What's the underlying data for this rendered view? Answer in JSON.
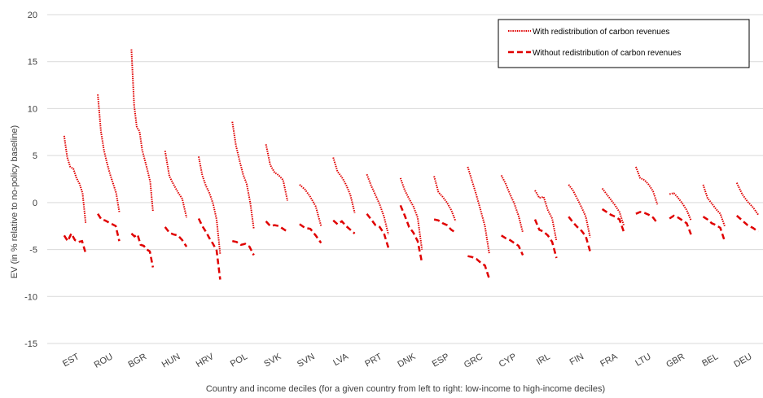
{
  "chart_data": {
    "type": "line",
    "xlabel": "Country and income deciles (for a given country from left to right: low-income to high-income deciles)",
    "ylabel": "EV (in % relative to no-policy baseline)",
    "ylim": [
      -15,
      20
    ],
    "yticks": [
      20,
      15,
      10,
      5,
      0,
      -5,
      -10,
      -15
    ],
    "grid": "horizontal",
    "legend_position": "top-right",
    "categories": [
      "EST",
      "ROU",
      "BGR",
      "HUN",
      "HRV",
      "POL",
      "SVK",
      "SVN",
      "LVA",
      "PRT",
      "DNK",
      "ESP",
      "GRC",
      "CYP",
      "IRL",
      "FIN",
      "FRA",
      "LTU",
      "GBR",
      "BEL",
      "DEU"
    ],
    "series": [
      {
        "name": "With redistribution of carbon revenues",
        "style": "dotted",
        "color": "#e00000",
        "values": [
          [
            7.1,
            4.8,
            3.8,
            3.6,
            2.6,
            2.0,
            1.0,
            -2.2
          ],
          [
            11.5,
            7.6,
            5.6,
            4.2,
            3.0,
            2.0,
            1.0,
            -1.0
          ],
          [
            16.3,
            10.4,
            8.0,
            7.6,
            5.6,
            4.5,
            3.4,
            2.2,
            -0.9
          ],
          [
            5.5,
            2.8,
            1.9,
            1.1,
            0.4,
            -1.6
          ],
          [
            4.9,
            2.9,
            1.8,
            1.0,
            -0.1,
            -1.8,
            -5.5
          ],
          [
            8.6,
            6.1,
            4.5,
            3.0,
            2.0,
            0.0,
            -2.8
          ],
          [
            6.2,
            4.0,
            3.2,
            2.9,
            2.4,
            0.2
          ],
          [
            1.9,
            1.4,
            0.6,
            -0.4,
            -2.5
          ],
          [
            4.8,
            3.3,
            2.7,
            1.9,
            0.8,
            -1.1
          ],
          [
            3.0,
            1.8,
            0.8,
            -0.2,
            -1.5,
            -3.4
          ],
          [
            2.6,
            1.3,
            0.4,
            -0.4,
            -1.6,
            -5.0
          ],
          [
            2.8,
            1.1,
            0.6,
            0.0,
            -0.8,
            -2.0
          ],
          [
            3.8,
            2.3,
            0.8,
            -0.8,
            -2.5,
            -5.4
          ],
          [
            2.9,
            2.0,
            0.9,
            -0.1,
            -1.4,
            -3.2
          ],
          [
            1.3,
            0.5,
            0.6,
            -0.8,
            -1.7,
            -4.1
          ],
          [
            1.9,
            1.3,
            0.4,
            -0.5,
            -1.5,
            -3.7
          ],
          [
            1.5,
            0.9,
            0.3,
            -0.3,
            -1.0,
            -2.4
          ],
          [
            3.8,
            2.6,
            2.4,
            1.9,
            1.2,
            -0.2
          ],
          [
            0.9,
            1.0,
            0.5,
            -0.1,
            -0.8,
            -1.9
          ],
          [
            1.9,
            0.5,
            -0.1,
            -0.7,
            -1.2,
            -2.5
          ],
          [
            2.1,
            0.9,
            0.1,
            -0.5,
            -1.3
          ]
        ]
      },
      {
        "name": "Without redistribution of carbon revenues",
        "style": "dashed",
        "color": "#e00000",
        "values": [
          [
            -3.5,
            -4.1,
            -3.3,
            -4.0,
            -4.2,
            -4.1,
            -5.4
          ],
          [
            -1.2,
            -1.8,
            -1.9,
            -2.1,
            -2.3,
            -2.5,
            -4.1
          ],
          [
            -3.3,
            -3.6,
            -3.4,
            -4.5,
            -4.6,
            -5.0,
            -5.2,
            -6.9
          ],
          [
            -2.6,
            -3.2,
            -3.4,
            -3.5,
            -4.0,
            -4.7
          ],
          [
            -1.7,
            -2.5,
            -3.1,
            -3.8,
            -4.4,
            -5.1,
            -8.2
          ],
          [
            -4.1,
            -4.2,
            -4.5,
            -4.4,
            -4.7,
            -5.6
          ],
          [
            -2.0,
            -2.5,
            -2.4,
            -2.5,
            -2.8,
            -3.1
          ],
          [
            -2.3,
            -2.7,
            -2.8,
            -3.5,
            -4.3
          ],
          [
            -1.9,
            -2.3,
            -2.0,
            -2.5,
            -2.9,
            -3.3
          ],
          [
            -1.2,
            -1.8,
            -2.4,
            -2.6,
            -3.3,
            -4.8
          ],
          [
            -0.3,
            -1.4,
            -2.6,
            -3.2,
            -4.1,
            -6.4
          ],
          [
            -1.8,
            -1.9,
            -2.2,
            -2.4,
            -2.9,
            -3.2
          ],
          [
            -5.7,
            -5.8,
            -6.0,
            -6.4,
            -6.7,
            -8.1
          ],
          [
            -3.5,
            -3.8,
            -4.0,
            -4.3,
            -4.6,
            -5.6
          ],
          [
            -1.8,
            -2.9,
            -3.1,
            -3.5,
            -4.2,
            -5.9
          ],
          [
            -1.5,
            -2.1,
            -2.6,
            -3.0,
            -3.6,
            -5.2
          ],
          [
            -0.7,
            -1.0,
            -1.3,
            -1.5,
            -1.8,
            -3.1
          ],
          [
            -1.2,
            -1.0,
            -1.1,
            -1.3,
            -1.6,
            -2.2
          ],
          [
            -1.7,
            -1.4,
            -1.6,
            -1.9,
            -2.2,
            -3.4
          ],
          [
            -1.5,
            -1.8,
            -2.2,
            -2.4,
            -2.7,
            -4.1
          ],
          [
            -1.4,
            -1.9,
            -2.4,
            -2.7,
            -3.1
          ]
        ]
      }
    ]
  }
}
